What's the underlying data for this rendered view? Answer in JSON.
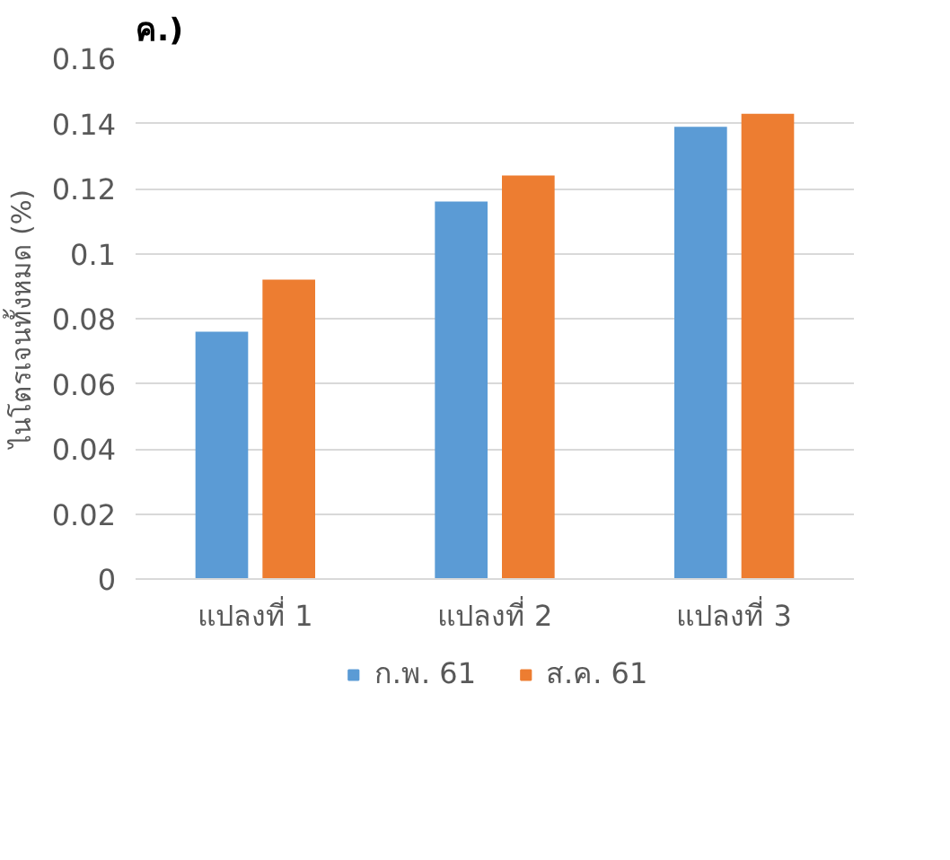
{
  "chart_data": {
    "type": "bar",
    "title": "ค.)",
    "ylabel": "ไนโตรเจนทั้งหมด (%)",
    "categories": [
      "แปลงที่ 1",
      "แปลงที่ 2",
      "แปลงที่ 3"
    ],
    "series": [
      {
        "name": "ก.พ. 61",
        "color": "#5b9bd5",
        "values": [
          0.076,
          0.116,
          0.139
        ]
      },
      {
        "name": "ส.ค. 61",
        "color": "#ed7d31",
        "values": [
          0.092,
          0.124,
          0.143
        ]
      }
    ],
    "ylim": [
      0,
      0.16
    ],
    "yticks": [
      0,
      0.02,
      0.04,
      0.06,
      0.08,
      {
        "value": 0.1,
        "label": "0.1"
      },
      0.12,
      0.14,
      0.16
    ],
    "grid": "y",
    "legend": "bottom"
  }
}
